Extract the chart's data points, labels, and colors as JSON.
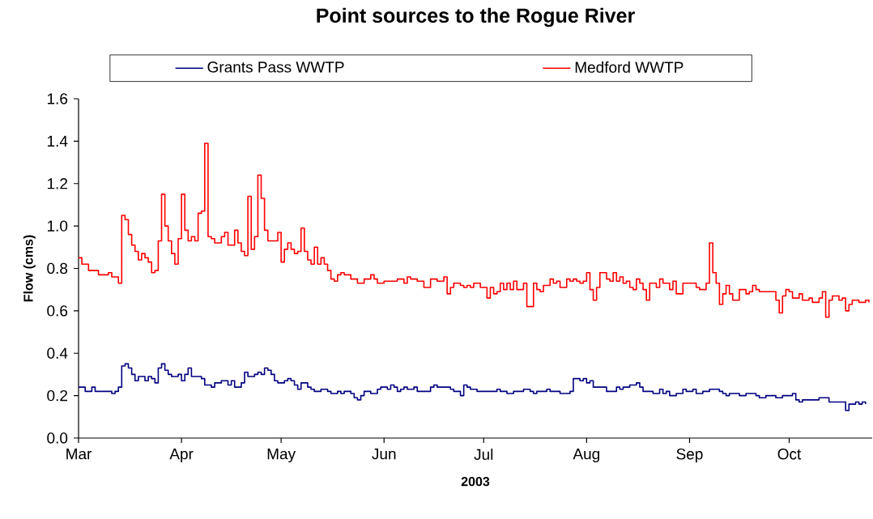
{
  "chart_data": {
    "type": "step",
    "title": "Point sources to the Rogue River",
    "xlabel": "2003",
    "ylabel": "Flow (cms)",
    "xlim": [
      "2003-03-01",
      "2003-10-26"
    ],
    "xticks": [
      {
        "value": "2003-03-01",
        "label": "Mar"
      },
      {
        "value": "2003-04-01",
        "label": "Apr"
      },
      {
        "value": "2003-05-01",
        "label": "May"
      },
      {
        "value": "2003-06-01",
        "label": "Jun"
      },
      {
        "value": "2003-07-01",
        "label": "Jul"
      },
      {
        "value": "2003-08-01",
        "label": "Aug"
      },
      {
        "value": "2003-09-01",
        "label": "Sep"
      },
      {
        "value": "2003-10-01",
        "label": "Oct"
      }
    ],
    "ylim": [
      0,
      1.6
    ],
    "yticks": [
      {
        "value": 0,
        "label": "0.0"
      },
      0.2,
      0.4,
      0.6,
      0.8,
      {
        "value": 1,
        "label": "1.0"
      },
      1.2,
      1.4,
      1.6
    ],
    "legend": "top",
    "grid": false,
    "series": [
      {
        "name": "Grants Pass WWTP",
        "color": "#000080",
        "x": [
          "2003-03-01",
          "2003-03-03",
          "2003-03-05",
          "2003-03-06",
          "2003-03-08",
          "2003-03-11",
          "2003-03-12",
          "2003-03-13",
          "2003-03-14",
          "2003-03-15",
          "2003-03-16",
          "2003-03-17",
          "2003-03-18",
          "2003-03-19",
          "2003-03-21",
          "2003-03-22",
          "2003-03-23",
          "2003-03-24",
          "2003-03-25",
          "2003-03-26",
          "2003-03-27",
          "2003-03-28",
          "2003-03-29",
          "2003-03-31",
          "2003-04-01",
          "2003-04-02",
          "2003-04-03",
          "2003-04-04",
          "2003-04-07",
          "2003-04-08",
          "2003-04-10",
          "2003-04-11",
          "2003-04-13",
          "2003-04-15",
          "2003-04-16",
          "2003-04-17",
          "2003-04-19",
          "2003-04-20",
          "2003-04-21",
          "2003-04-23",
          "2003-04-24",
          "2003-04-25",
          "2003-04-26",
          "2003-04-27",
          "2003-04-28",
          "2003-04-29",
          "2003-04-30",
          "2003-05-02",
          "2003-05-03",
          "2003-05-04",
          "2003-05-05",
          "2003-05-06",
          "2003-05-07",
          "2003-05-09",
          "2003-05-10",
          "2003-05-11",
          "2003-05-13",
          "2003-05-15",
          "2003-05-16",
          "2003-05-18",
          "2003-05-19",
          "2003-05-20",
          "2003-05-22",
          "2003-05-23",
          "2003-05-24",
          "2003-05-25",
          "2003-05-26",
          "2003-05-28",
          "2003-05-30",
          "2003-05-31",
          "2003-06-02",
          "2003-06-03",
          "2003-06-04",
          "2003-06-05",
          "2003-06-06",
          "2003-06-07",
          "2003-06-08",
          "2003-06-10",
          "2003-06-11",
          "2003-06-15",
          "2003-06-16",
          "2003-06-17",
          "2003-06-21",
          "2003-06-22",
          "2003-06-24",
          "2003-06-25",
          "2003-06-26",
          "2003-06-27",
          "2003-06-29",
          "2003-07-05",
          "2003-07-06",
          "2003-07-08",
          "2003-07-10",
          "2003-07-13",
          "2003-07-15",
          "2003-07-16",
          "2003-07-17",
          "2003-07-20",
          "2003-07-21",
          "2003-07-24",
          "2003-07-27",
          "2003-07-28",
          "2003-07-30",
          "2003-07-31",
          "2003-08-01",
          "2003-08-02",
          "2003-08-03",
          "2003-08-07",
          "2003-08-10",
          "2003-08-11",
          "2003-08-12",
          "2003-08-14",
          "2003-08-16",
          "2003-08-17",
          "2003-08-18",
          "2003-08-21",
          "2003-08-23",
          "2003-08-24",
          "2003-08-25",
          "2003-08-26",
          "2003-08-28",
          "2003-08-30",
          "2003-08-31",
          "2003-09-02",
          "2003-09-03",
          "2003-09-05",
          "2003-09-07",
          "2003-09-10",
          "2003-09-11",
          "2003-09-12",
          "2003-09-13",
          "2003-09-16",
          "2003-09-18",
          "2003-09-21",
          "2003-09-22",
          "2003-09-24",
          "2003-09-27",
          "2003-09-29",
          "2003-10-02",
          "2003-10-03",
          "2003-10-04",
          "2003-10-05",
          "2003-10-10",
          "2003-10-13",
          "2003-10-18",
          "2003-10-19",
          "2003-10-21",
          "2003-10-22",
          "2003-10-23",
          "2003-10-24"
        ],
        "values": [
          0.24,
          0.22,
          0.24,
          0.22,
          0.22,
          0.21,
          0.22,
          0.24,
          0.34,
          0.35,
          0.33,
          0.3,
          0.27,
          0.29,
          0.27,
          0.29,
          0.28,
          0.26,
          0.33,
          0.35,
          0.32,
          0.3,
          0.29,
          0.3,
          0.27,
          0.3,
          0.33,
          0.29,
          0.28,
          0.25,
          0.24,
          0.26,
          0.27,
          0.25,
          0.27,
          0.24,
          0.26,
          0.31,
          0.29,
          0.3,
          0.31,
          0.3,
          0.33,
          0.32,
          0.3,
          0.27,
          0.26,
          0.27,
          0.28,
          0.27,
          0.25,
          0.23,
          0.26,
          0.24,
          0.23,
          0.22,
          0.23,
          0.22,
          0.21,
          0.22,
          0.21,
          0.22,
          0.21,
          0.19,
          0.18,
          0.2,
          0.22,
          0.21,
          0.23,
          0.24,
          0.23,
          0.25,
          0.24,
          0.22,
          0.23,
          0.24,
          0.23,
          0.24,
          0.22,
          0.24,
          0.25,
          0.24,
          0.23,
          0.22,
          0.2,
          0.25,
          0.24,
          0.23,
          0.22,
          0.23,
          0.22,
          0.21,
          0.22,
          0.23,
          0.22,
          0.21,
          0.22,
          0.23,
          0.22,
          0.21,
          0.22,
          0.28,
          0.27,
          0.28,
          0.26,
          0.27,
          0.24,
          0.22,
          0.24,
          0.23,
          0.24,
          0.25,
          0.26,
          0.24,
          0.22,
          0.21,
          0.23,
          0.21,
          0.22,
          0.2,
          0.21,
          0.23,
          0.22,
          0.23,
          0.21,
          0.22,
          0.23,
          0.22,
          0.21,
          0.2,
          0.21,
          0.2,
          0.21,
          0.2,
          0.19,
          0.2,
          0.19,
          0.2,
          0.21,
          0.18,
          0.17,
          0.18,
          0.19,
          0.17,
          0.13,
          0.16,
          0.17,
          0.16,
          0.17,
          0.16
        ]
      },
      {
        "name": "Medford WWTP",
        "color": "#ff0000",
        "x": [
          "2003-03-01",
          "2003-03-02",
          "2003-03-04",
          "2003-03-07",
          "2003-03-10",
          "2003-03-11",
          "2003-03-13",
          "2003-03-14",
          "2003-03-15",
          "2003-03-16",
          "2003-03-17",
          "2003-03-18",
          "2003-03-19",
          "2003-03-20",
          "2003-03-21",
          "2003-03-22",
          "2003-03-23",
          "2003-03-24",
          "2003-03-25",
          "2003-03-26",
          "2003-03-27",
          "2003-03-28",
          "2003-03-29",
          "2003-03-30",
          "2003-03-31",
          "2003-04-01",
          "2003-04-02",
          "2003-04-03",
          "2003-04-04",
          "2003-04-05",
          "2003-04-06",
          "2003-04-07",
          "2003-04-08",
          "2003-04-09",
          "2003-04-10",
          "2003-04-11",
          "2003-04-13",
          "2003-04-14",
          "2003-04-15",
          "2003-04-17",
          "2003-04-18",
          "2003-04-19",
          "2003-04-20",
          "2003-04-21",
          "2003-04-22",
          "2003-04-23",
          "2003-04-24",
          "2003-04-25",
          "2003-04-26",
          "2003-04-27",
          "2003-04-30",
          "2003-05-01",
          "2003-05-02",
          "2003-05-03",
          "2003-05-04",
          "2003-05-05",
          "2003-05-06",
          "2003-05-07",
          "2003-05-08",
          "2003-05-09",
          "2003-05-10",
          "2003-05-11",
          "2003-05-12",
          "2003-05-13",
          "2003-05-14",
          "2003-05-15",
          "2003-05-16",
          "2003-05-17",
          "2003-05-18",
          "2003-05-19",
          "2003-05-20",
          "2003-05-22",
          "2003-05-24",
          "2003-05-26",
          "2003-05-28",
          "2003-05-29",
          "2003-05-30",
          "2003-06-01",
          "2003-06-03",
          "2003-06-05",
          "2003-06-07",
          "2003-06-08",
          "2003-06-09",
          "2003-06-11",
          "2003-06-13",
          "2003-06-15",
          "2003-06-17",
          "2003-06-19",
          "2003-06-20",
          "2003-06-21",
          "2003-06-22",
          "2003-06-24",
          "2003-06-25",
          "2003-06-26",
          "2003-06-27",
          "2003-06-28",
          "2003-06-30",
          "2003-07-02",
          "2003-07-03",
          "2003-07-04",
          "2003-07-05",
          "2003-07-06",
          "2003-07-07",
          "2003-07-08",
          "2003-07-09",
          "2003-07-10",
          "2003-07-11",
          "2003-07-13",
          "2003-07-14",
          "2003-07-16",
          "2003-07-17",
          "2003-07-18",
          "2003-07-19",
          "2003-07-21",
          "2003-07-22",
          "2003-07-23",
          "2003-07-24",
          "2003-07-26",
          "2003-07-27",
          "2003-07-28",
          "2003-07-29",
          "2003-07-30",
          "2003-07-31",
          "2003-08-01",
          "2003-08-02",
          "2003-08-03",
          "2003-08-04",
          "2003-08-05",
          "2003-08-07",
          "2003-08-08",
          "2003-08-09",
          "2003-08-10",
          "2003-08-11",
          "2003-08-12",
          "2003-08-13",
          "2003-08-14",
          "2003-08-15",
          "2003-08-16",
          "2003-08-17",
          "2003-08-18",
          "2003-08-19",
          "2003-08-20",
          "2003-08-22",
          "2003-08-23",
          "2003-08-24",
          "2003-08-25",
          "2003-08-26",
          "2003-08-27",
          "2003-08-28",
          "2003-08-30",
          "2003-09-01",
          "2003-09-03",
          "2003-09-04",
          "2003-09-06",
          "2003-09-07",
          "2003-09-08",
          "2003-09-09",
          "2003-09-10",
          "2003-09-11",
          "2003-09-12",
          "2003-09-13",
          "2003-09-14",
          "2003-09-16",
          "2003-09-18",
          "2003-09-19",
          "2003-09-20",
          "2003-09-21",
          "2003-09-22",
          "2003-09-24",
          "2003-09-27",
          "2003-09-28",
          "2003-09-29",
          "2003-09-30",
          "2003-10-01",
          "2003-10-02",
          "2003-10-04",
          "2003-10-05",
          "2003-10-07",
          "2003-10-08",
          "2003-10-10",
          "2003-10-11",
          "2003-10-12",
          "2003-10-13",
          "2003-10-14",
          "2003-10-16",
          "2003-10-17",
          "2003-10-18",
          "2003-10-19",
          "2003-10-20",
          "2003-10-22",
          "2003-10-23",
          "2003-10-24",
          "2003-10-25"
        ],
        "values": [
          0.85,
          0.82,
          0.79,
          0.77,
          0.78,
          0.76,
          0.73,
          1.05,
          1.03,
          0.96,
          0.91,
          0.88,
          0.84,
          0.87,
          0.85,
          0.83,
          0.78,
          0.79,
          0.93,
          1.15,
          1.0,
          0.93,
          0.87,
          0.82,
          0.94,
          1.15,
          0.98,
          0.93,
          0.95,
          0.93,
          1.06,
          1.07,
          1.39,
          0.95,
          0.94,
          0.92,
          0.95,
          0.97,
          0.91,
          0.98,
          0.92,
          0.88,
          0.86,
          1.14,
          0.89,
          0.95,
          1.24,
          1.13,
          0.98,
          0.93,
          0.97,
          0.83,
          0.89,
          0.92,
          0.89,
          0.87,
          0.88,
          0.99,
          0.88,
          0.84,
          0.82,
          0.9,
          0.82,
          0.85,
          0.82,
          0.79,
          0.75,
          0.74,
          0.77,
          0.78,
          0.77,
          0.75,
          0.73,
          0.75,
          0.77,
          0.75,
          0.73,
          0.74,
          0.74,
          0.75,
          0.73,
          0.76,
          0.75,
          0.74,
          0.71,
          0.75,
          0.74,
          0.76,
          0.68,
          0.71,
          0.73,
          0.72,
          0.71,
          0.72,
          0.71,
          0.73,
          0.71,
          0.66,
          0.71,
          0.68,
          0.69,
          0.73,
          0.7,
          0.73,
          0.7,
          0.74,
          0.7,
          0.73,
          0.62,
          0.73,
          0.7,
          0.69,
          0.72,
          0.75,
          0.73,
          0.74,
          0.71,
          0.75,
          0.74,
          0.75,
          0.74,
          0.73,
          0.74,
          0.78,
          0.7,
          0.65,
          0.71,
          0.78,
          0.75,
          0.74,
          0.78,
          0.74,
          0.76,
          0.73,
          0.74,
          0.71,
          0.7,
          0.75,
          0.73,
          0.7,
          0.65,
          0.73,
          0.71,
          0.75,
          0.73,
          0.73,
          0.7,
          0.74,
          0.68,
          0.73,
          0.73,
          0.71,
          0.7,
          0.73,
          0.92,
          0.78,
          0.73,
          0.63,
          0.68,
          0.72,
          0.68,
          0.65,
          0.7,
          0.68,
          0.69,
          0.72,
          0.7,
          0.69,
          0.69,
          0.65,
          0.59,
          0.67,
          0.7,
          0.69,
          0.66,
          0.68,
          0.65,
          0.66,
          0.64,
          0.66,
          0.69,
          0.57,
          0.65,
          0.67,
          0.65,
          0.66,
          0.6,
          0.63,
          0.65,
          0.64,
          0.64,
          0.65,
          0.64
        ]
      }
    ]
  }
}
